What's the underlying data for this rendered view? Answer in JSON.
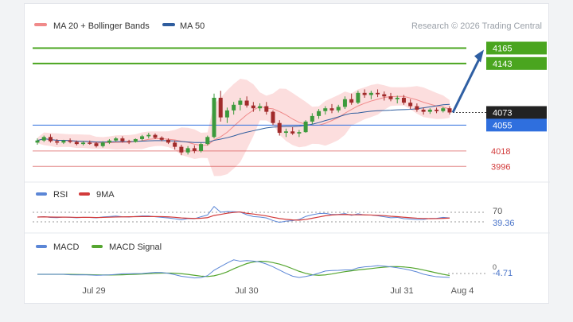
{
  "chart_data": {
    "type": "candlestick",
    "main": {
      "legend": [
        {
          "name": "MA 20 + Bollinger Bands",
          "color": "#f08a8a"
        },
        {
          "name": "MA 50",
          "color": "#2f5d9e"
        }
      ],
      "credit": "Research © 2026 Trading Central",
      "ylim": [
        3985,
        4178
      ],
      "resistance_levels": [
        {
          "value": 4165,
          "label": "4165",
          "color": "#4aa51f"
        },
        {
          "value": 4143,
          "label": "4143",
          "color": "#4aa51f"
        }
      ],
      "support_levels": [
        {
          "value": 4055,
          "label": "4055",
          "color": "#2f6fde"
        },
        {
          "value": 4018,
          "label": "4018",
          "color": "#d23a3a"
        },
        {
          "value": 3996,
          "label": "3996",
          "color": "#d23a3a"
        }
      ],
      "last_price": {
        "value": 4073,
        "label": "4073",
        "color": "#222222"
      },
      "forecast_arrow": {
        "from": 4073,
        "to": 4165,
        "color": "#2f5fa3"
      }
    },
    "rsi": {
      "legend": [
        {
          "name": "RSI",
          "color": "#5b86d6"
        },
        {
          "name": "9MA",
          "color": "#d23a3a"
        }
      ],
      "level_label": "70",
      "last_value": "39.36"
    },
    "macd": {
      "legend": [
        {
          "name": "MACD",
          "color": "#5b86d6"
        },
        {
          "name": "MACD Signal",
          "color": "#55a630"
        }
      ],
      "level_label": "0",
      "last_value": "-4.71"
    },
    "x_labels": [
      "Jul 29",
      "Jul 30",
      "Jul 31",
      "Aug 4"
    ],
    "candles": [
      [
        4030,
        4036,
        4027,
        4033
      ],
      [
        4033,
        4040,
        4031,
        4038
      ],
      [
        4038,
        4042,
        4030,
        4032
      ],
      [
        4032,
        4035,
        4027,
        4030
      ],
      [
        4030,
        4034,
        4028,
        4033
      ],
      [
        4033,
        4036,
        4029,
        4031
      ],
      [
        4031,
        4033,
        4026,
        4028
      ],
      [
        4028,
        4032,
        4026,
        4030
      ],
      [
        4030,
        4033,
        4027,
        4029
      ],
      [
        4029,
        4031,
        4023,
        4025
      ],
      [
        4025,
        4032,
        4023,
        4030
      ],
      [
        4030,
        4035,
        4028,
        4033
      ],
      [
        4033,
        4038,
        4031,
        4036
      ],
      [
        4036,
        4039,
        4030,
        4032
      ],
      [
        4032,
        4034,
        4028,
        4031
      ],
      [
        4031,
        4036,
        4030,
        4035
      ],
      [
        4035,
        4041,
        4033,
        4039
      ],
      [
        4039,
        4044,
        4036,
        4041
      ],
      [
        4041,
        4043,
        4035,
        4037
      ],
      [
        4037,
        4039,
        4032,
        4034
      ],
      [
        4034,
        4036,
        4028,
        4030
      ],
      [
        4030,
        4033,
        4020,
        4024
      ],
      [
        4024,
        4027,
        4012,
        4016
      ],
      [
        4016,
        4025,
        4013,
        4022
      ],
      [
        4022,
        4026,
        4015,
        4018
      ],
      [
        4018,
        4030,
        4016,
        4028
      ],
      [
        4028,
        4040,
        4026,
        4038
      ],
      [
        4038,
        4100,
        4036,
        4094
      ],
      [
        4094,
        4104,
        4060,
        4066
      ],
      [
        4066,
        4080,
        4058,
        4076
      ],
      [
        4076,
        4088,
        4070,
        4084
      ],
      [
        4084,
        4094,
        4076,
        4090
      ],
      [
        4090,
        4096,
        4080,
        4083
      ],
      [
        4083,
        4088,
        4074,
        4079
      ],
      [
        4079,
        4086,
        4075,
        4082
      ],
      [
        4082,
        4088,
        4070,
        4074
      ],
      [
        4074,
        4076,
        4055,
        4058
      ],
      [
        4058,
        4062,
        4040,
        4044
      ],
      [
        4044,
        4050,
        4038,
        4046
      ],
      [
        4046,
        4052,
        4041,
        4043
      ],
      [
        4043,
        4048,
        4038,
        4045
      ],
      [
        4045,
        4062,
        4044,
        4060
      ],
      [
        4060,
        4072,
        4056,
        4068
      ],
      [
        4068,
        4078,
        4064,
        4075
      ],
      [
        4075,
        4082,
        4070,
        4079
      ],
      [
        4079,
        4085,
        4072,
        4076
      ],
      [
        4076,
        4084,
        4073,
        4081
      ],
      [
        4081,
        4096,
        4078,
        4092
      ],
      [
        4092,
        4100,
        4084,
        4087
      ],
      [
        4087,
        4104,
        4085,
        4101
      ],
      [
        4101,
        4106,
        4094,
        4098
      ],
      [
        4098,
        4104,
        4092,
        4101
      ],
      [
        4101,
        4106,
        4095,
        4099
      ],
      [
        4099,
        4103,
        4090,
        4096
      ],
      [
        4096,
        4101,
        4089,
        4092
      ],
      [
        4092,
        4097,
        4086,
        4094
      ],
      [
        4094,
        4098,
        4084,
        4087
      ],
      [
        4087,
        4092,
        4078,
        4082
      ],
      [
        4082,
        4086,
        4074,
        4077
      ],
      [
        4077,
        4080,
        4070,
        4074
      ],
      [
        4074,
        4079,
        4071,
        4077
      ],
      [
        4077,
        4080,
        4072,
        4075
      ],
      [
        4075,
        4081,
        4073,
        4079
      ],
      [
        4079,
        4082,
        4070,
        4073
      ]
    ]
  }
}
